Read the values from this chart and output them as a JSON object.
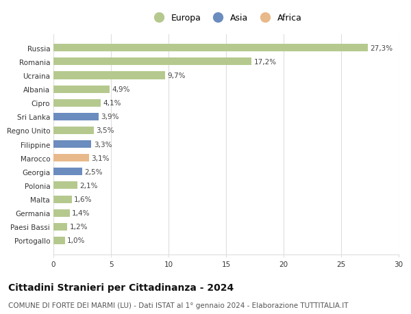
{
  "countries": [
    "Russia",
    "Romania",
    "Ucraina",
    "Albania",
    "Cipro",
    "Sri Lanka",
    "Regno Unito",
    "Filippine",
    "Marocco",
    "Georgia",
    "Polonia",
    "Malta",
    "Germania",
    "Paesi Bassi",
    "Portogallo"
  ],
  "values": [
    27.3,
    17.2,
    9.7,
    4.9,
    4.1,
    3.9,
    3.5,
    3.3,
    3.1,
    2.5,
    2.1,
    1.6,
    1.4,
    1.2,
    1.0
  ],
  "labels": [
    "27,3%",
    "17,2%",
    "9,7%",
    "4,9%",
    "4,1%",
    "3,9%",
    "3,5%",
    "3,3%",
    "3,1%",
    "2,5%",
    "2,1%",
    "1,6%",
    "1,4%",
    "1,2%",
    "1,0%"
  ],
  "continents": [
    "Europa",
    "Europa",
    "Europa",
    "Europa",
    "Europa",
    "Asia",
    "Europa",
    "Asia",
    "Africa",
    "Asia",
    "Europa",
    "Europa",
    "Europa",
    "Europa",
    "Europa"
  ],
  "colors": {
    "Europa": "#b5c98e",
    "Asia": "#6b8cbf",
    "Africa": "#e8b98a"
  },
  "legend_order": [
    "Europa",
    "Asia",
    "Africa"
  ],
  "title": "Cittadini Stranieri per Cittadinanza - 2024",
  "subtitle": "COMUNE DI FORTE DEI MARMI (LU) - Dati ISTAT al 1° gennaio 2024 - Elaborazione TUTTITALIA.IT",
  "xlim": [
    0,
    30
  ],
  "xticks": [
    0,
    5,
    10,
    15,
    20,
    25,
    30
  ],
  "background_color": "#ffffff",
  "grid_color": "#dddddd",
  "bar_height": 0.55,
  "title_fontsize": 10,
  "subtitle_fontsize": 7.5,
  "label_fontsize": 7.5,
  "tick_fontsize": 7.5,
  "legend_fontsize": 9
}
